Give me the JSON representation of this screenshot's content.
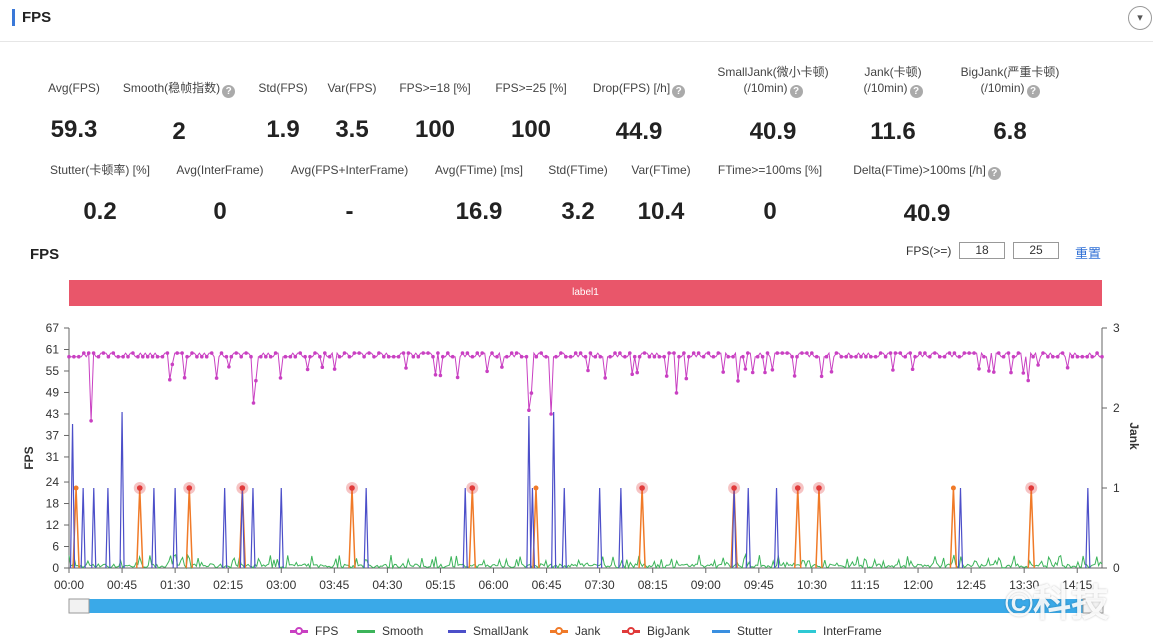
{
  "header": {
    "title": "FPS",
    "dropdown_icon": "▾"
  },
  "metrics_row1": [
    {
      "label": "Avg(FPS)",
      "value": "59.3",
      "help": false
    },
    {
      "label": "Smooth(稳帧指数)",
      "value": "2",
      "help": true
    },
    {
      "label": "Std(FPS)",
      "value": "1.9",
      "help": false
    },
    {
      "label": "Var(FPS)",
      "value": "3.5",
      "help": false
    },
    {
      "label": "FPS>=18 [%]",
      "value": "100",
      "help": false
    },
    {
      "label": "FPS>=25 [%]",
      "value": "100",
      "help": false
    },
    {
      "label": "Drop(FPS) [/h]",
      "value": "44.9",
      "help": true
    },
    {
      "label": "SmallJank(微小卡顿)",
      "label2": "(/10min)",
      "value": "40.9",
      "help": true
    },
    {
      "label": "Jank(卡顿)",
      "label2": "(/10min)",
      "value": "11.6",
      "help": true
    },
    {
      "label": "BigJank(严重卡顿)",
      "label2": "(/10min)",
      "value": "6.8",
      "help": true
    }
  ],
  "metrics_row2": [
    {
      "label": "Stutter(卡顿率) [%]",
      "value": "0.2",
      "help": false
    },
    {
      "label": "Avg(InterFrame)",
      "value": "0",
      "help": false
    },
    {
      "label": "Avg(FPS+InterFrame)",
      "value": "-",
      "help": false
    },
    {
      "label": "Avg(FTime) [ms]",
      "value": "16.9",
      "help": false
    },
    {
      "label": "Std(FTime)",
      "value": "3.2",
      "help": false
    },
    {
      "label": "Var(FTime)",
      "value": "10.4",
      "help": false
    },
    {
      "label": "FTime>=100ms [%]",
      "value": "0",
      "help": false
    },
    {
      "label": "Delta(FTime)>100ms [/h]",
      "value": "40.9",
      "help": true
    }
  ],
  "chart_controls": {
    "title": "FPS",
    "threshold_label": "FPS(>=)",
    "threshold_1": "18",
    "threshold_2": "25",
    "reset_label": "重置",
    "timeline_label": "label1"
  },
  "chart_data": {
    "type": "line",
    "ylabel": "FPS",
    "y2label": "Jank",
    "ylim": [
      0,
      67
    ],
    "y2lim": [
      0,
      3
    ],
    "yticks": [
      0,
      6,
      12,
      18,
      24,
      31,
      37,
      43,
      49,
      55,
      61,
      67
    ],
    "y2ticks": [
      0,
      1,
      2,
      3
    ],
    "x_ticks": [
      "00:00",
      "00:45",
      "01:30",
      "02:15",
      "03:00",
      "03:45",
      "04:30",
      "05:15",
      "06:00",
      "06:45",
      "07:30",
      "08:15",
      "09:00",
      "09:45",
      "10:30",
      "11:15",
      "12:00",
      "12:45",
      "13:30",
      "14:15"
    ],
    "x_range_min": [
      0,
      14.6
    ],
    "fps_typical": 60,
    "fps_min": 41,
    "fps_dips_min": [
      0.3,
      2.6,
      6.5,
      6.55,
      6.8,
      8.6
    ],
    "smallJank_spikes_min": [
      {
        "t": 0.05,
        "v": 1.8
      },
      {
        "t": 0.2,
        "v": 1
      },
      {
        "t": 0.35,
        "v": 1
      },
      {
        "t": 0.55,
        "v": 1
      },
      {
        "t": 0.75,
        "v": 1.95
      },
      {
        "t": 1.2,
        "v": 1
      },
      {
        "t": 1.5,
        "v": 1
      },
      {
        "t": 2.2,
        "v": 1
      },
      {
        "t": 2.45,
        "v": 1
      },
      {
        "t": 2.6,
        "v": 1
      },
      {
        "t": 3.0,
        "v": 1
      },
      {
        "t": 4.2,
        "v": 1
      },
      {
        "t": 5.6,
        "v": 1
      },
      {
        "t": 6.5,
        "v": 1.9
      },
      {
        "t": 6.55,
        "v": 1
      },
      {
        "t": 6.85,
        "v": 1.95
      },
      {
        "t": 7.0,
        "v": 1
      },
      {
        "t": 7.5,
        "v": 1
      },
      {
        "t": 7.8,
        "v": 1
      },
      {
        "t": 9.4,
        "v": 1
      },
      {
        "t": 9.6,
        "v": 1
      },
      {
        "t": 10.0,
        "v": 1
      },
      {
        "t": 12.6,
        "v": 1
      },
      {
        "t": 14.4,
        "v": 1
      }
    ],
    "jank_markers_min": [
      0.1,
      1.0,
      1.7,
      2.45,
      4.0,
      5.7,
      6.6,
      8.1,
      9.4,
      10.3,
      10.6,
      12.5,
      13.6
    ],
    "bigJank_markers_min": [
      1.0,
      1.7,
      2.45,
      4.0,
      5.7,
      8.1,
      9.4,
      10.3,
      10.6,
      13.6
    ],
    "series": [
      {
        "name": "FPS",
        "color": "#c940c2",
        "axis": "left"
      },
      {
        "name": "Smooth",
        "color": "#3cb45a",
        "axis": "right"
      },
      {
        "name": "SmallJank",
        "color": "#4c4fc9",
        "axis": "right"
      },
      {
        "name": "Jank",
        "color": "#f07a28",
        "axis": "right"
      },
      {
        "name": "BigJank",
        "color": "#e03a3a",
        "axis": "right"
      },
      {
        "name": "Stutter",
        "color": "#3a8fe0",
        "axis": "right"
      },
      {
        "name": "InterFrame",
        "color": "#2ec9d4",
        "axis": "right"
      }
    ],
    "legend_position": "bottom",
    "grid": false
  },
  "watermark": "©科技"
}
